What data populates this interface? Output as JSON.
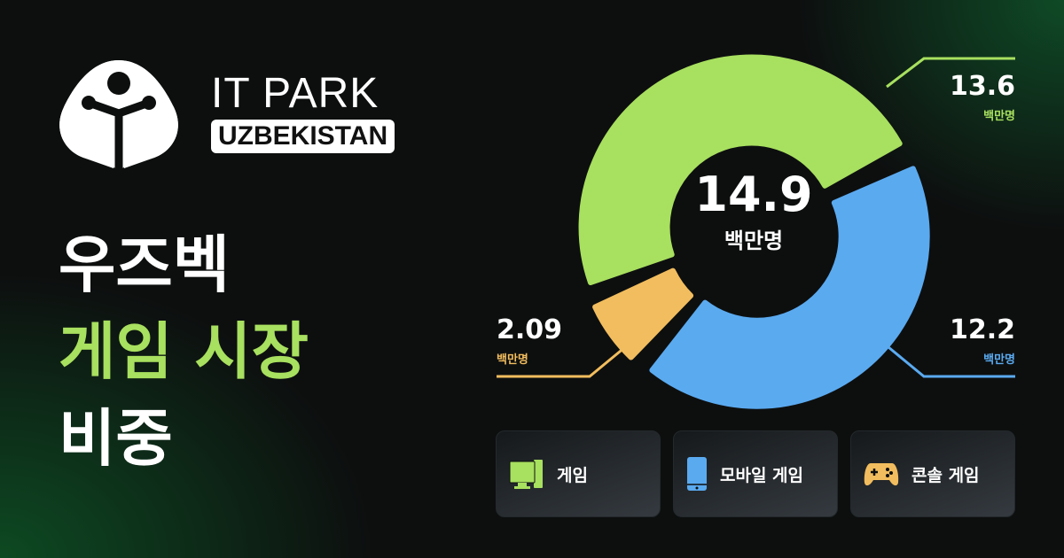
{
  "brand": {
    "line1": "IT PARK",
    "line2": "UZBEKISTAN"
  },
  "title": {
    "line1": "우즈벡",
    "line2": "게임 시장",
    "line3": "비중"
  },
  "colors": {
    "green": "#a8e05f",
    "blue": "#5aaaf0",
    "orange": "#f2bd5e",
    "background": "#0d0f0f"
  },
  "chart_data": {
    "type": "pie",
    "variant": "donut",
    "center": {
      "value": "14.9",
      "unit": "백만명"
    },
    "series": [
      {
        "name": "게임",
        "value": 13.6,
        "label": "13.6",
        "unit": "백만명",
        "color": "#a8e05f",
        "icon": "desktop-computer-icon"
      },
      {
        "name": "모바일 게임",
        "value": 12.2,
        "label": "12.2",
        "unit": "백만명",
        "color": "#5aaaf0",
        "icon": "smartphone-icon"
      },
      {
        "name": "콘솔 게임",
        "value": 2.09,
        "label": "2.09",
        "unit": "백만명",
        "color": "#f2bd5e",
        "icon": "gamepad-icon"
      }
    ],
    "legend": "bottom"
  }
}
